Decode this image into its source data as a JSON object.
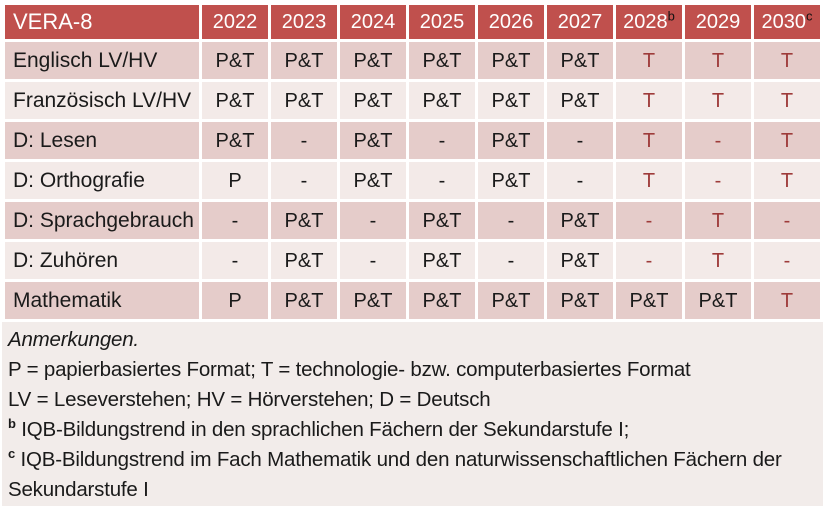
{
  "colors": {
    "header_bg": "#C0504D",
    "header_text": "#FFFFFF",
    "band_dark": "#E5CCCA",
    "band_light": "#F3EAE8",
    "notes_bg": "#F2ECEA",
    "accent_text": "#9E3B3A",
    "body_text": "#1A1A1A"
  },
  "table": {
    "corner_label": "VERA-8",
    "years": [
      {
        "label": "2022",
        "sup": ""
      },
      {
        "label": "2023",
        "sup": ""
      },
      {
        "label": "2024",
        "sup": ""
      },
      {
        "label": "2025",
        "sup": ""
      },
      {
        "label": "2026",
        "sup": ""
      },
      {
        "label": "2027",
        "sup": ""
      },
      {
        "label": "2028",
        "sup": "b"
      },
      {
        "label": "2029",
        "sup": ""
      },
      {
        "label": "2030",
        "sup": "c"
      }
    ],
    "rows": [
      {
        "label": "Englisch LV/HV",
        "cells": [
          {
            "t": "P&T",
            "red": false
          },
          {
            "t": "P&T",
            "red": false
          },
          {
            "t": "P&T",
            "red": false
          },
          {
            "t": "P&T",
            "red": false
          },
          {
            "t": "P&T",
            "red": false
          },
          {
            "t": "P&T",
            "red": false
          },
          {
            "t": "T",
            "red": true
          },
          {
            "t": "T",
            "red": true
          },
          {
            "t": "T",
            "red": true
          }
        ]
      },
      {
        "label": "Französisch LV/HV",
        "cells": [
          {
            "t": "P&T",
            "red": false
          },
          {
            "t": "P&T",
            "red": false
          },
          {
            "t": "P&T",
            "red": false
          },
          {
            "t": "P&T",
            "red": false
          },
          {
            "t": "P&T",
            "red": false
          },
          {
            "t": "P&T",
            "red": false
          },
          {
            "t": "T",
            "red": true
          },
          {
            "t": "T",
            "red": true
          },
          {
            "t": "T",
            "red": true
          }
        ]
      },
      {
        "label": "D: Lesen",
        "cells": [
          {
            "t": "P&T",
            "red": false
          },
          {
            "t": "-",
            "red": false
          },
          {
            "t": "P&T",
            "red": false
          },
          {
            "t": "-",
            "red": false
          },
          {
            "t": "P&T",
            "red": false
          },
          {
            "t": "-",
            "red": false
          },
          {
            "t": "T",
            "red": true
          },
          {
            "t": "-",
            "red": true
          },
          {
            "t": "T",
            "red": true
          }
        ]
      },
      {
        "label": "D: Orthografie",
        "cells": [
          {
            "t": "P",
            "red": false
          },
          {
            "t": "-",
            "red": false
          },
          {
            "t": "P&T",
            "red": false
          },
          {
            "t": "-",
            "red": false
          },
          {
            "t": "P&T",
            "red": false
          },
          {
            "t": "-",
            "red": false
          },
          {
            "t": "T",
            "red": true
          },
          {
            "t": "-",
            "red": true
          },
          {
            "t": "T",
            "red": true
          }
        ]
      },
      {
        "label": "D: Sprachgebrauch",
        "cells": [
          {
            "t": "-",
            "red": false
          },
          {
            "t": "P&T",
            "red": false
          },
          {
            "t": "-",
            "red": false
          },
          {
            "t": "P&T",
            "red": false
          },
          {
            "t": "-",
            "red": false
          },
          {
            "t": "P&T",
            "red": false
          },
          {
            "t": "-",
            "red": true
          },
          {
            "t": "T",
            "red": true
          },
          {
            "t": "-",
            "red": true
          }
        ]
      },
      {
        "label": "D: Zuhören",
        "cells": [
          {
            "t": "-",
            "red": false
          },
          {
            "t": "P&T",
            "red": false
          },
          {
            "t": "-",
            "red": false
          },
          {
            "t": "P&T",
            "red": false
          },
          {
            "t": "-",
            "red": false
          },
          {
            "t": "P&T",
            "red": false
          },
          {
            "t": "-",
            "red": true
          },
          {
            "t": "T",
            "red": true
          },
          {
            "t": "-",
            "red": true
          }
        ]
      },
      {
        "label": "Mathematik",
        "cells": [
          {
            "t": "P",
            "red": false
          },
          {
            "t": "P&T",
            "red": false
          },
          {
            "t": "P&T",
            "red": false
          },
          {
            "t": "P&T",
            "red": false
          },
          {
            "t": "P&T",
            "red": false
          },
          {
            "t": "P&T",
            "red": false
          },
          {
            "t": "P&T",
            "red": false
          },
          {
            "t": "P&T",
            "red": false
          },
          {
            "t": "T",
            "red": true
          }
        ]
      }
    ]
  },
  "notes": {
    "title": "Anmerkungen.",
    "lines": [
      "P = papierbasiertes Format; T = technologie- bzw. computerbasiertes Format",
      "LV = Leseverstehen; HV = Hörverstehen; D = Deutsch"
    ],
    "footnotes": [
      {
        "marker": "b",
        "text": "IQB-Bildungstrend in den sprachlichen Fächern der Sekundarstufe I;"
      },
      {
        "marker": "c",
        "text": "IQB-Bildungstrend im Fach Mathematik und den naturwissenschaftlichen Fächern der Sekundarstufe I"
      }
    ]
  }
}
